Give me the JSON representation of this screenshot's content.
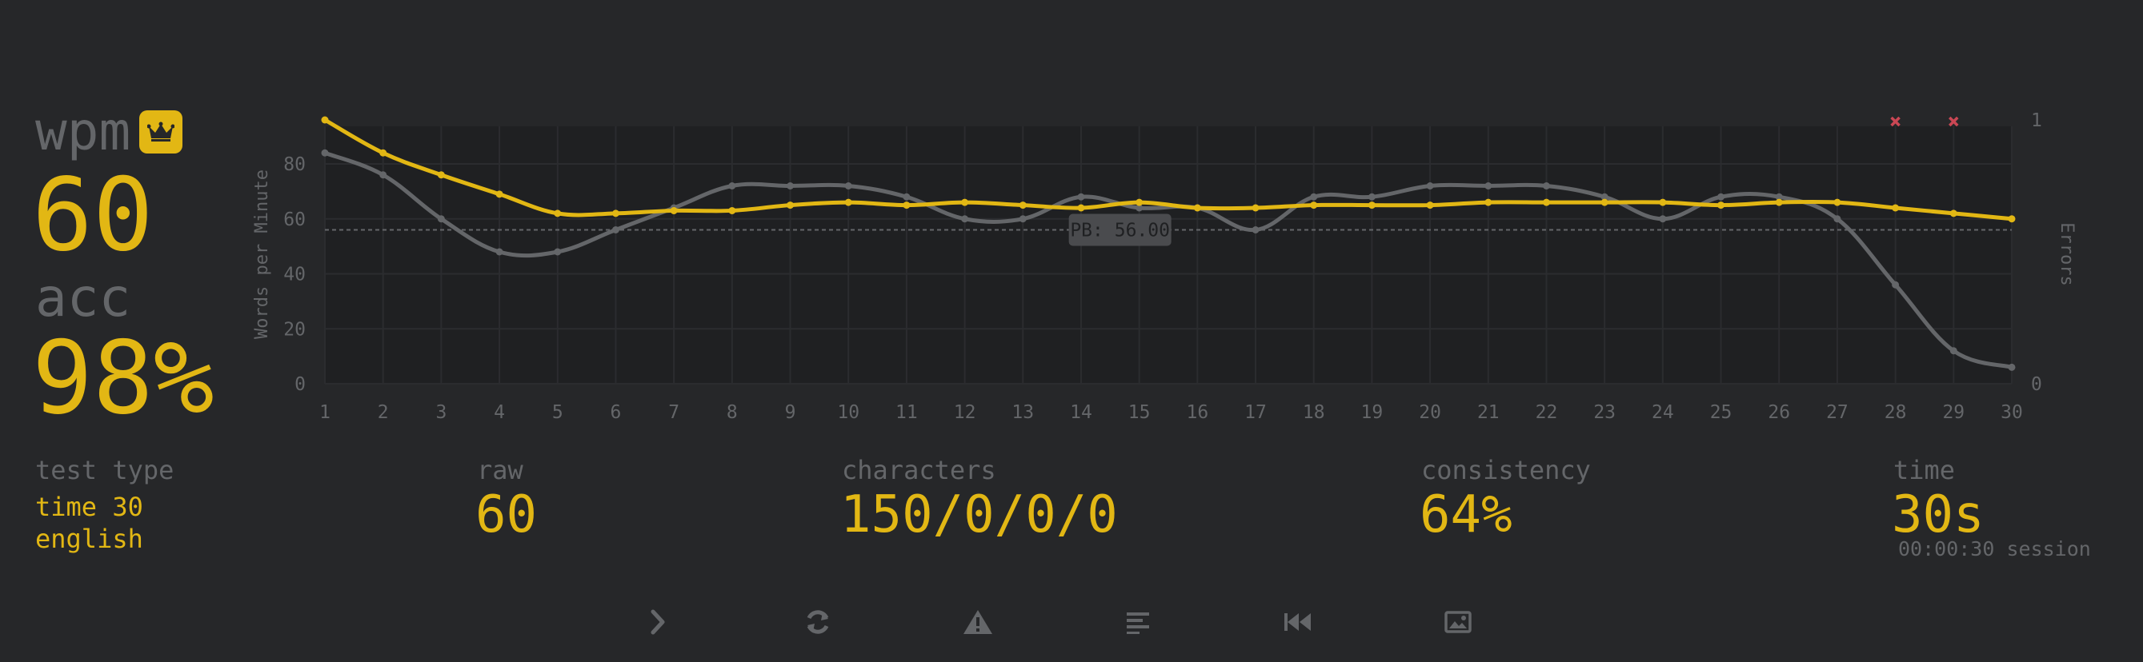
{
  "stats": {
    "wpm_label": "wpm",
    "wpm_value": "60",
    "acc_label": "acc",
    "acc_value": "98%",
    "test_type_label": "test type",
    "test_type_mode": "time 30",
    "test_type_language": "english",
    "raw_label": "raw",
    "raw_value": "60",
    "characters_label": "characters",
    "characters_value": "150/0/0/0",
    "consistency_label": "consistency",
    "consistency_value": "64%",
    "time_label": "time",
    "time_value": "30s",
    "session_text": "00:00:30 session"
  },
  "chart_data": {
    "type": "line",
    "x": [
      1,
      2,
      3,
      4,
      5,
      6,
      7,
      8,
      9,
      10,
      11,
      12,
      13,
      14,
      15,
      16,
      17,
      18,
      19,
      20,
      21,
      22,
      23,
      24,
      25,
      26,
      27,
      28,
      29,
      30
    ],
    "ylabel": "Words per Minute",
    "y2label": "Errors",
    "ylim": [
      0,
      96
    ],
    "yticks": [
      0,
      20,
      40,
      60,
      80
    ],
    "y2lim": [
      0,
      1
    ],
    "y2ticks": [
      0,
      1
    ],
    "series": [
      {
        "name": "wpm",
        "color": "#e2b714",
        "values": [
          96,
          84,
          76,
          69,
          62,
          62,
          63,
          63,
          65,
          66,
          65,
          66,
          65,
          64,
          66,
          64,
          64,
          65,
          65,
          65,
          66,
          66,
          66,
          66,
          65,
          66,
          66,
          64,
          62,
          60
        ]
      },
      {
        "name": "raw",
        "color": "#646669",
        "values": [
          84,
          76,
          60,
          48,
          48,
          56,
          64,
          72,
          72,
          72,
          68,
          60,
          60,
          68,
          64,
          64,
          56,
          68,
          68,
          72,
          72,
          72,
          68,
          60,
          68,
          68,
          60,
          36,
          12,
          6
        ]
      }
    ],
    "errors_x": [
      28,
      29
    ],
    "personal_best": 56,
    "personal_best_label": "PB: 56.00",
    "grid": true
  },
  "icons": [
    "chevron-right-icon",
    "refresh-icon",
    "warning-icon",
    "text-lines-icon",
    "rewind-icon",
    "image-icon"
  ],
  "colors": {
    "background": "#262729",
    "accent": "#e2b714",
    "muted": "#646669",
    "error": "#ca4754"
  }
}
